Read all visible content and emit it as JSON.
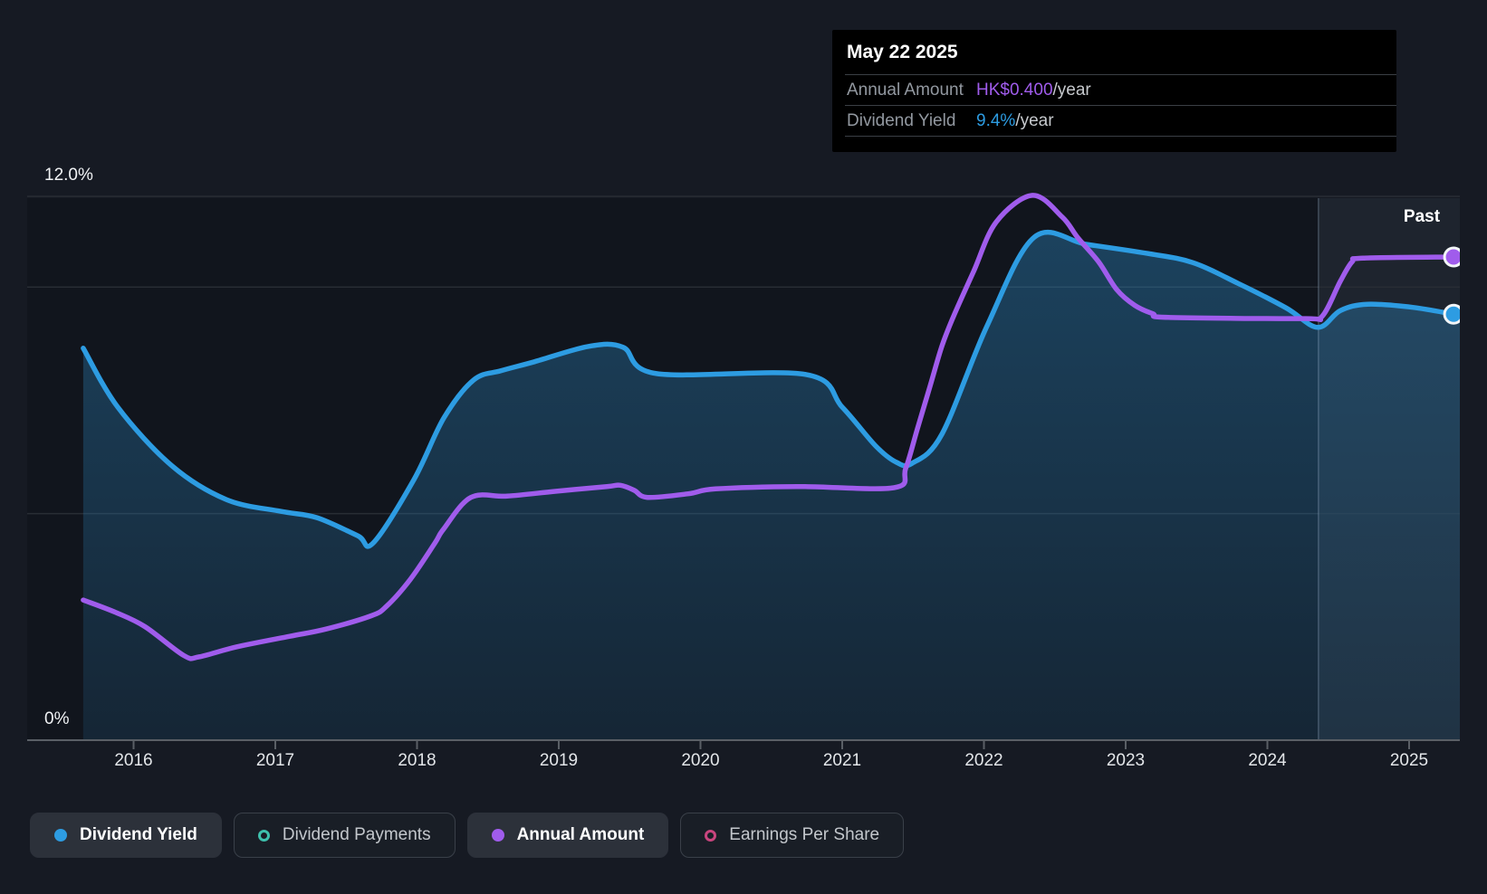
{
  "tooltip": {
    "date": "May 22 2025",
    "rows": [
      {
        "label": "Annual Amount",
        "value": "HK$0.400",
        "suffix": "/year"
      },
      {
        "label": "Dividend Yield",
        "value": "9.4%",
        "suffix": "/year"
      }
    ]
  },
  "past_label": "Past",
  "y_axis_labels": {
    "top": "12.0%",
    "bottom": "0%"
  },
  "legend": [
    {
      "label": "Dividend Yield",
      "color": "#2D9CE2",
      "marker": "filled",
      "active": true
    },
    {
      "label": "Dividend Payments",
      "color": "#3EC1AD",
      "marker": "open",
      "active": false
    },
    {
      "label": "Annual Amount",
      "color": "#A05CEC",
      "marker": "filled",
      "active": true
    },
    {
      "label": "Earnings Per Share",
      "color": "#C9457E",
      "marker": "open",
      "active": false
    }
  ],
  "chart_data": {
    "type": "line",
    "x_axis": {
      "tick_values": [
        2016,
        2017,
        2018,
        2019,
        2020,
        2021,
        2022,
        2023,
        2024,
        2025
      ],
      "tick_labels": [
        "2016",
        "2017",
        "2018",
        "2019",
        "2020",
        "2021",
        "2022",
        "2023",
        "2024",
        "2025"
      ],
      "range": [
        2015.45,
        2025.37
      ]
    },
    "y_axis": {
      "unit": "%",
      "range_pct": [
        0,
        12
      ],
      "top_label": "12.0%",
      "bottom_label": "0%",
      "gridline_values_pct": [
        12,
        10,
        5
      ],
      "grid": true
    },
    "past_region": {
      "start_year": 2024.36,
      "end_year": 2025.37,
      "label": "Past"
    },
    "legend_position": "bottom",
    "series": [
      {
        "name": "Dividend Yield",
        "unit": "%",
        "color": "#2D9CE2",
        "area_fill": true,
        "end_marker": true,
        "visible": true,
        "points": [
          [
            2015.645,
            8.65
          ],
          [
            2015.888,
            7.35
          ],
          [
            2016.272,
            6.05
          ],
          [
            2016.655,
            5.31
          ],
          [
            2017.038,
            5.05
          ],
          [
            2017.294,
            4.91
          ],
          [
            2017.582,
            4.51
          ],
          [
            2017.69,
            4.35
          ],
          [
            2017.978,
            5.75
          ],
          [
            2018.189,
            7.11
          ],
          [
            2018.4,
            7.95
          ],
          [
            2018.591,
            8.15
          ],
          [
            2018.828,
            8.35
          ],
          [
            2019.211,
            8.69
          ],
          [
            2019.454,
            8.67
          ],
          [
            2019.69,
            8.09
          ],
          [
            2020.745,
            8.07
          ],
          [
            2021.0,
            7.35
          ],
          [
            2021.237,
            6.49
          ],
          [
            2021.384,
            6.13
          ],
          [
            2021.493,
            6.11
          ],
          [
            2021.703,
            6.75
          ],
          [
            2022.023,
            9.15
          ],
          [
            2022.355,
            11.1
          ],
          [
            2022.726,
            10.94
          ],
          [
            2023.154,
            10.74
          ],
          [
            2023.473,
            10.54
          ],
          [
            2023.793,
            10.08
          ],
          [
            2024.131,
            9.54
          ],
          [
            2024.355,
            9.11
          ],
          [
            2024.515,
            9.48
          ],
          [
            2024.706,
            9.62
          ],
          [
            2025.026,
            9.55
          ],
          [
            2025.314,
            9.4
          ]
        ]
      },
      {
        "name": "Annual Amount",
        "unit": "HK$ per share per year",
        "color": "#A05CEC",
        "area_fill": false,
        "end_marker": true,
        "visible": true,
        "points": [
          [
            2015.645,
            0.116
          ],
          [
            2015.869,
            0.106
          ],
          [
            2016.08,
            0.094
          ],
          [
            2016.355,
            0.07
          ],
          [
            2016.463,
            0.069
          ],
          [
            2016.719,
            0.077
          ],
          [
            2017.102,
            0.086
          ],
          [
            2017.358,
            0.092
          ],
          [
            2017.677,
            0.103
          ],
          [
            2017.786,
            0.111
          ],
          [
            2017.952,
            0.133
          ],
          [
            2018.125,
            0.163
          ],
          [
            2018.189,
            0.175
          ],
          [
            2018.38,
            0.201
          ],
          [
            2018.636,
            0.202
          ],
          [
            2018.975,
            0.206
          ],
          [
            2019.339,
            0.21
          ],
          [
            2019.435,
            0.211
          ],
          [
            2019.531,
            0.207
          ],
          [
            2019.626,
            0.201
          ],
          [
            2019.914,
            0.204
          ],
          [
            2020.106,
            0.208
          ],
          [
            2020.681,
            0.21
          ],
          [
            2021.365,
            0.209
          ],
          [
            2021.448,
            0.225
          ],
          [
            2021.531,
            0.258
          ],
          [
            2021.62,
            0.293
          ],
          [
            2021.703,
            0.326
          ],
          [
            2021.786,
            0.351
          ],
          [
            2021.927,
            0.388
          ],
          [
            2022.087,
            0.429
          ],
          [
            2022.342,
            0.451
          ],
          [
            2022.553,
            0.433
          ],
          [
            2022.662,
            0.416
          ],
          [
            2022.809,
            0.396
          ],
          [
            2022.937,
            0.373
          ],
          [
            2023.064,
            0.36
          ],
          [
            2023.192,
            0.353
          ],
          [
            2023.301,
            0.35
          ],
          [
            2024.259,
            0.349
          ],
          [
            2024.387,
            0.351
          ],
          [
            2024.515,
            0.38
          ],
          [
            2024.598,
            0.396
          ],
          [
            2024.674,
            0.399
          ],
          [
            2025.314,
            0.4
          ]
        ]
      },
      {
        "name": "Dividend Payments",
        "color": "#3EC1AD",
        "visible": false,
        "points": []
      },
      {
        "name": "Earnings Per Share",
        "color": "#C9457E",
        "visible": false,
        "points": []
      }
    ],
    "colors": {
      "background": "#161A23",
      "plot_background": "#11151D",
      "gridline": "#282D34",
      "axis": "#5A5F66",
      "area_fill_rgb": "45,140,200",
      "past_overlay": "rgba(148,173,200,0.10)",
      "past_divider": "rgba(170,190,215,0.30)",
      "marker_ring": "#F2F5F7"
    }
  }
}
